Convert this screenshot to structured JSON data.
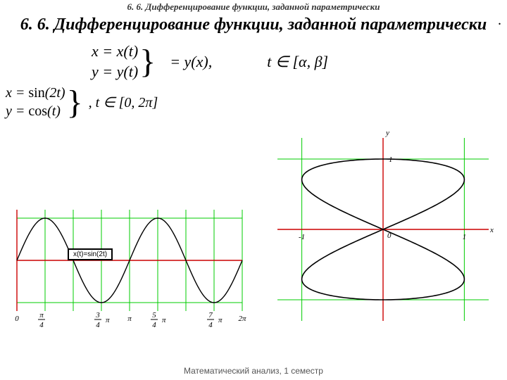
{
  "header_small": "6. 6. Дифференцирование функции, заданной параметрически",
  "title": "6. 6. Дифференцирование функции, заданной параметрически",
  "eq_general": {
    "line1": "x = x(t)",
    "line2": "y = y(t)",
    "result": "= y(x),",
    "domain": "t ∈ [α, β]"
  },
  "eq_example": {
    "line1": "x = sin(2t)",
    "line2": "y = cos(t)",
    "domain": ", t ∈ [0, 2π]"
  },
  "footer": "Математический анализ, 1 семестр",
  "chart_sine": {
    "type": "line",
    "legend_label": "x(t)=sin(2t)",
    "xlim": [
      0,
      6.2832
    ],
    "ylim": [
      -1.2,
      1.2
    ],
    "x_ticks": [
      {
        "pos": 0,
        "label": "0"
      },
      {
        "pos": 0.7854,
        "label_top": "π",
        "label_bot": "4"
      },
      {
        "pos": 2.3562,
        "label_top": "3",
        "label_bot": "4",
        "pi_after": true
      },
      {
        "pos": 3.1416,
        "label": "π",
        "plain": true
      },
      {
        "pos": 3.927,
        "label_top": "5",
        "label_bot": "4",
        "pi_after": true
      },
      {
        "pos": 5.4978,
        "label_top": "7",
        "label_bot": "4",
        "pi_after": true
      },
      {
        "pos": 6.2832,
        "label": "2π",
        "plain": true
      }
    ],
    "minor_x": [
      0,
      0.7854,
      1.5708,
      2.3562,
      3.1416,
      3.927,
      4.7124,
      5.4978,
      6.2832
    ],
    "grid_y": [
      -1,
      0,
      1
    ],
    "grid_color": "#00cc00",
    "axis_color": "#cc0000",
    "curve_color": "#000000"
  },
  "chart_liss": {
    "type": "parametric",
    "xlim": [
      -1.3,
      1.3
    ],
    "ylim": [
      -1.3,
      1.3
    ],
    "grid_points": [
      -1,
      0,
      1
    ],
    "grid_color": "#00cc00",
    "axis_color": "#cc0000",
    "curve_color": "#000000",
    "x_label": "x",
    "y_label": "y",
    "tick_labels": {
      "xneg": "-1",
      "xpos": "1",
      "ypos": "1",
      "origin": "0"
    }
  }
}
